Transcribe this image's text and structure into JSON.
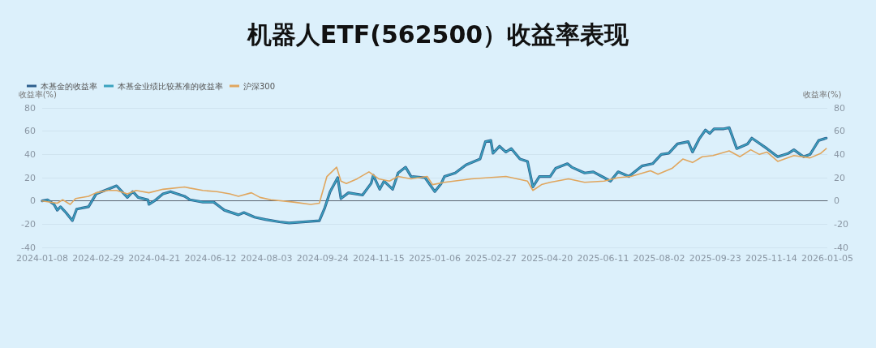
{
  "chart_data": {
    "type": "line",
    "title": "机器人ETF(562500）收益率表现",
    "ylabel": "收益率(%)",
    "y2label": "收益率(%)",
    "xlim": [
      "2024-01-08",
      "2026-01-05"
    ],
    "xticks": [
      "2024-01-08",
      "2024-02-29",
      "2024-04-21",
      "2024-06-12",
      "2024-08-03",
      "2024-09-24",
      "2024-11-15",
      "2025-01-06",
      "2025-02-27",
      "2025-04-20",
      "2025-06-11",
      "2025-08-02",
      "2025-09-23",
      "2025-11-14",
      "2026-01-05"
    ],
    "ylim": [
      -40,
      80
    ],
    "yticks": [
      -40,
      -20,
      0,
      20,
      40,
      60,
      80
    ],
    "y2lim": [
      -40,
      80
    ],
    "y2ticks": [
      -40,
      -20,
      0,
      20,
      40,
      60,
      80
    ],
    "grid": "y",
    "legend": "top left",
    "marker": "none",
    "line_style": "solid",
    "series": [
      {
        "name": "本基金的收益率",
        "color": "#2d5f8e",
        "x": [
          "2024-01-08",
          "2024-01-13",
          "2024-01-19",
          "2024-01-22",
          "2024-01-25",
          "2024-01-30",
          "2024-02-05",
          "2024-02-09",
          "2024-02-20",
          "2024-02-27",
          "2024-03-09",
          "2024-03-17",
          "2024-03-27",
          "2024-04-01",
          "2024-04-06",
          "2024-04-15",
          "2024-04-16",
          "2024-04-21",
          "2024-04-29",
          "2024-05-06",
          "2024-05-19",
          "2024-05-24",
          "2024-06-05",
          "2024-06-15",
          "2024-06-25",
          "2024-07-08",
          "2024-07-13",
          "2024-07-23",
          "2024-08-02",
          "2024-08-15",
          "2024-08-24",
          "2024-09-21",
          "2024-09-26",
          "2024-10-01",
          "2024-10-08",
          "2024-10-11",
          "2024-10-18",
          "2024-10-31",
          "2024-11-08",
          "2024-11-10",
          "2024-11-16",
          "2024-11-20",
          "2024-11-28",
          "2024-12-03",
          "2024-12-10",
          "2024-12-15",
          "2024-12-28",
          "2025-01-06",
          "2025-01-12",
          "2025-01-15",
          "2025-01-25",
          "2025-02-04",
          "2025-02-17",
          "2025-02-22",
          "2025-02-27",
          "2025-03-01",
          "2025-03-07",
          "2025-03-13",
          "2025-03-18",
          "2025-03-26",
          "2025-04-02",
          "2025-04-07",
          "2025-04-13",
          "2025-04-23",
          "2025-04-28",
          "2025-05-09",
          "2025-05-13",
          "2025-05-25",
          "2025-06-02",
          "2025-06-12",
          "2025-06-18",
          "2025-06-25",
          "2025-07-05",
          "2025-07-17",
          "2025-07-27",
          "2025-08-04",
          "2025-08-11",
          "2025-08-19",
          "2025-08-29",
          "2025-09-02",
          "2025-09-08",
          "2025-09-14",
          "2025-09-18",
          "2025-09-22",
          "2025-10-01",
          "2025-10-06",
          "2025-10-13",
          "2025-10-23",
          "2025-10-27",
          "2025-11-10",
          "2025-11-17",
          "2025-11-20",
          "2025-11-30",
          "2025-12-05",
          "2025-12-14",
          "2025-12-20",
          "2025-12-24",
          "2025-12-28",
          "2026-01-04"
        ],
        "values": [
          0,
          1,
          -3,
          -8,
          -5,
          -10,
          -17,
          -7,
          -5,
          6,
          10,
          13,
          3,
          8,
          3,
          1,
          -3,
          0,
          6,
          8,
          4,
          1,
          -1,
          -1,
          -8,
          -12,
          -10,
          -14,
          -16,
          -18,
          -19,
          -17,
          -6,
          8,
          20,
          2,
          7,
          5,
          15,
          22,
          10,
          17,
          10,
          24,
          29,
          21,
          20,
          8,
          15,
          21,
          24,
          31,
          36,
          51,
          52,
          41,
          47,
          42,
          45,
          36,
          34,
          12,
          21,
          21,
          28,
          32,
          29,
          24,
          25,
          20,
          17,
          25,
          21,
          30,
          32,
          40,
          41,
          49,
          51,
          42,
          53,
          61,
          58,
          62,
          62,
          63,
          45,
          49,
          54,
          45,
          40,
          38,
          41,
          44,
          38,
          40,
          46,
          52,
          54
        ]
      },
      {
        "name": "本基金业绩比较基准的收益率",
        "color": "#3aa3bf",
        "x": [
          "2024-01-08",
          "2024-01-13",
          "2024-01-19",
          "2024-01-22",
          "2024-01-25",
          "2024-01-30",
          "2024-02-05",
          "2024-02-09",
          "2024-02-20",
          "2024-02-27",
          "2024-03-09",
          "2024-03-17",
          "2024-03-27",
          "2024-04-01",
          "2024-04-06",
          "2024-04-15",
          "2024-04-16",
          "2024-04-21",
          "2024-04-29",
          "2024-05-06",
          "2024-05-19",
          "2024-05-24",
          "2024-06-05",
          "2024-06-15",
          "2024-06-25",
          "2024-07-08",
          "2024-07-13",
          "2024-07-23",
          "2024-08-02",
          "2024-08-15",
          "2024-08-24",
          "2024-09-21",
          "2024-09-26",
          "2024-10-01",
          "2024-10-08",
          "2024-10-11",
          "2024-10-18",
          "2024-10-31",
          "2024-11-08",
          "2024-11-10",
          "2024-11-16",
          "2024-11-20",
          "2024-11-28",
          "2024-12-03",
          "2024-12-10",
          "2024-12-15",
          "2024-12-28",
          "2025-01-06",
          "2025-01-12",
          "2025-01-15",
          "2025-01-25",
          "2025-02-04",
          "2025-02-17",
          "2025-02-22",
          "2025-02-27",
          "2025-03-01",
          "2025-03-07",
          "2025-03-13",
          "2025-03-18",
          "2025-03-26",
          "2025-04-02",
          "2025-04-07",
          "2025-04-13",
          "2025-04-23",
          "2025-04-28",
          "2025-05-09",
          "2025-05-13",
          "2025-05-25",
          "2025-06-02",
          "2025-06-12",
          "2025-06-18",
          "2025-06-25",
          "2025-07-05",
          "2025-07-17",
          "2025-07-27",
          "2025-08-04",
          "2025-08-11",
          "2025-08-19",
          "2025-08-29",
          "2025-09-02",
          "2025-09-08",
          "2025-09-14",
          "2025-09-18",
          "2025-09-22",
          "2025-10-01",
          "2025-10-06",
          "2025-10-13",
          "2025-10-23",
          "2025-10-27",
          "2025-11-10",
          "2025-11-17",
          "2025-11-20",
          "2025-11-30",
          "2025-12-05",
          "2025-12-14",
          "2025-12-20",
          "2025-12-24",
          "2025-12-28",
          "2026-01-04"
        ],
        "values": [
          0,
          1,
          -3,
          -8,
          -5,
          -10,
          -17,
          -7,
          -5,
          6,
          10,
          13,
          3,
          8,
          3,
          1,
          -3,
          0,
          6,
          8,
          4,
          1,
          -1,
          -1,
          -8,
          -12,
          -10,
          -14,
          -16,
          -18,
          -19,
          -17,
          -6,
          8,
          20,
          2,
          7,
          5,
          15,
          22,
          10,
          17,
          10,
          24,
          29,
          21,
          20,
          8,
          15,
          21,
          24,
          31,
          36,
          51,
          52,
          41,
          47,
          42,
          45,
          36,
          34,
          12,
          21,
          21,
          28,
          32,
          29,
          24,
          25,
          20,
          17,
          25,
          21,
          30,
          32,
          40,
          41,
          49,
          51,
          42,
          53,
          61,
          58,
          62,
          62,
          63,
          45,
          49,
          54,
          45,
          40,
          38,
          41,
          44,
          38,
          40,
          46,
          52,
          54
        ]
      },
      {
        "name": "沪深300",
        "color": "#e0a65e",
        "x": [
          "2024-01-08",
          "2024-01-22",
          "2024-01-27",
          "2024-02-03",
          "2024-02-08",
          "2024-02-20",
          "2024-02-27",
          "2024-03-09",
          "2024-03-17",
          "2024-03-27",
          "2024-04-04",
          "2024-04-16",
          "2024-04-29",
          "2024-05-19",
          "2024-05-24",
          "2024-06-05",
          "2024-06-18",
          "2024-06-30",
          "2024-07-08",
          "2024-07-20",
          "2024-07-28",
          "2024-08-07",
          "2024-08-28",
          "2024-09-13",
          "2024-09-21",
          "2024-09-28",
          "2024-10-07",
          "2024-10-11",
          "2024-10-16",
          "2024-10-26",
          "2024-11-06",
          "2024-11-15",
          "2024-11-25",
          "2024-12-03",
          "2024-12-15",
          "2024-12-30",
          "2025-01-04",
          "2025-01-15",
          "2025-02-09",
          "2025-03-13",
          "2025-04-02",
          "2025-04-07",
          "2025-04-15",
          "2025-04-23",
          "2025-05-10",
          "2025-05-25",
          "2025-06-12",
          "2025-06-25",
          "2025-07-07",
          "2025-07-25",
          "2025-08-01",
          "2025-08-14",
          "2025-08-24",
          "2025-09-02",
          "2025-09-11",
          "2025-09-21",
          "2025-10-06",
          "2025-10-16",
          "2025-10-26",
          "2025-11-03",
          "2025-11-10",
          "2025-11-20",
          "2025-12-05",
          "2025-12-20",
          "2025-12-30",
          "2026-01-04"
        ],
        "values": [
          0,
          -2,
          1,
          -3,
          2,
          4,
          7,
          9,
          9,
          6,
          9,
          7,
          10,
          12,
          11,
          9,
          8,
          6,
          4,
          7,
          3,
          1,
          -1,
          -3,
          -2,
          21,
          29,
          17,
          15,
          19,
          25,
          19,
          17,
          21,
          19,
          21,
          14,
          16,
          19,
          21,
          17,
          9,
          14,
          16,
          19,
          16,
          17,
          20,
          21,
          26,
          23,
          28,
          36,
          33,
          38,
          39,
          43,
          38,
          44,
          40,
          42,
          34,
          39,
          37,
          41,
          45
        ]
      }
    ]
  }
}
